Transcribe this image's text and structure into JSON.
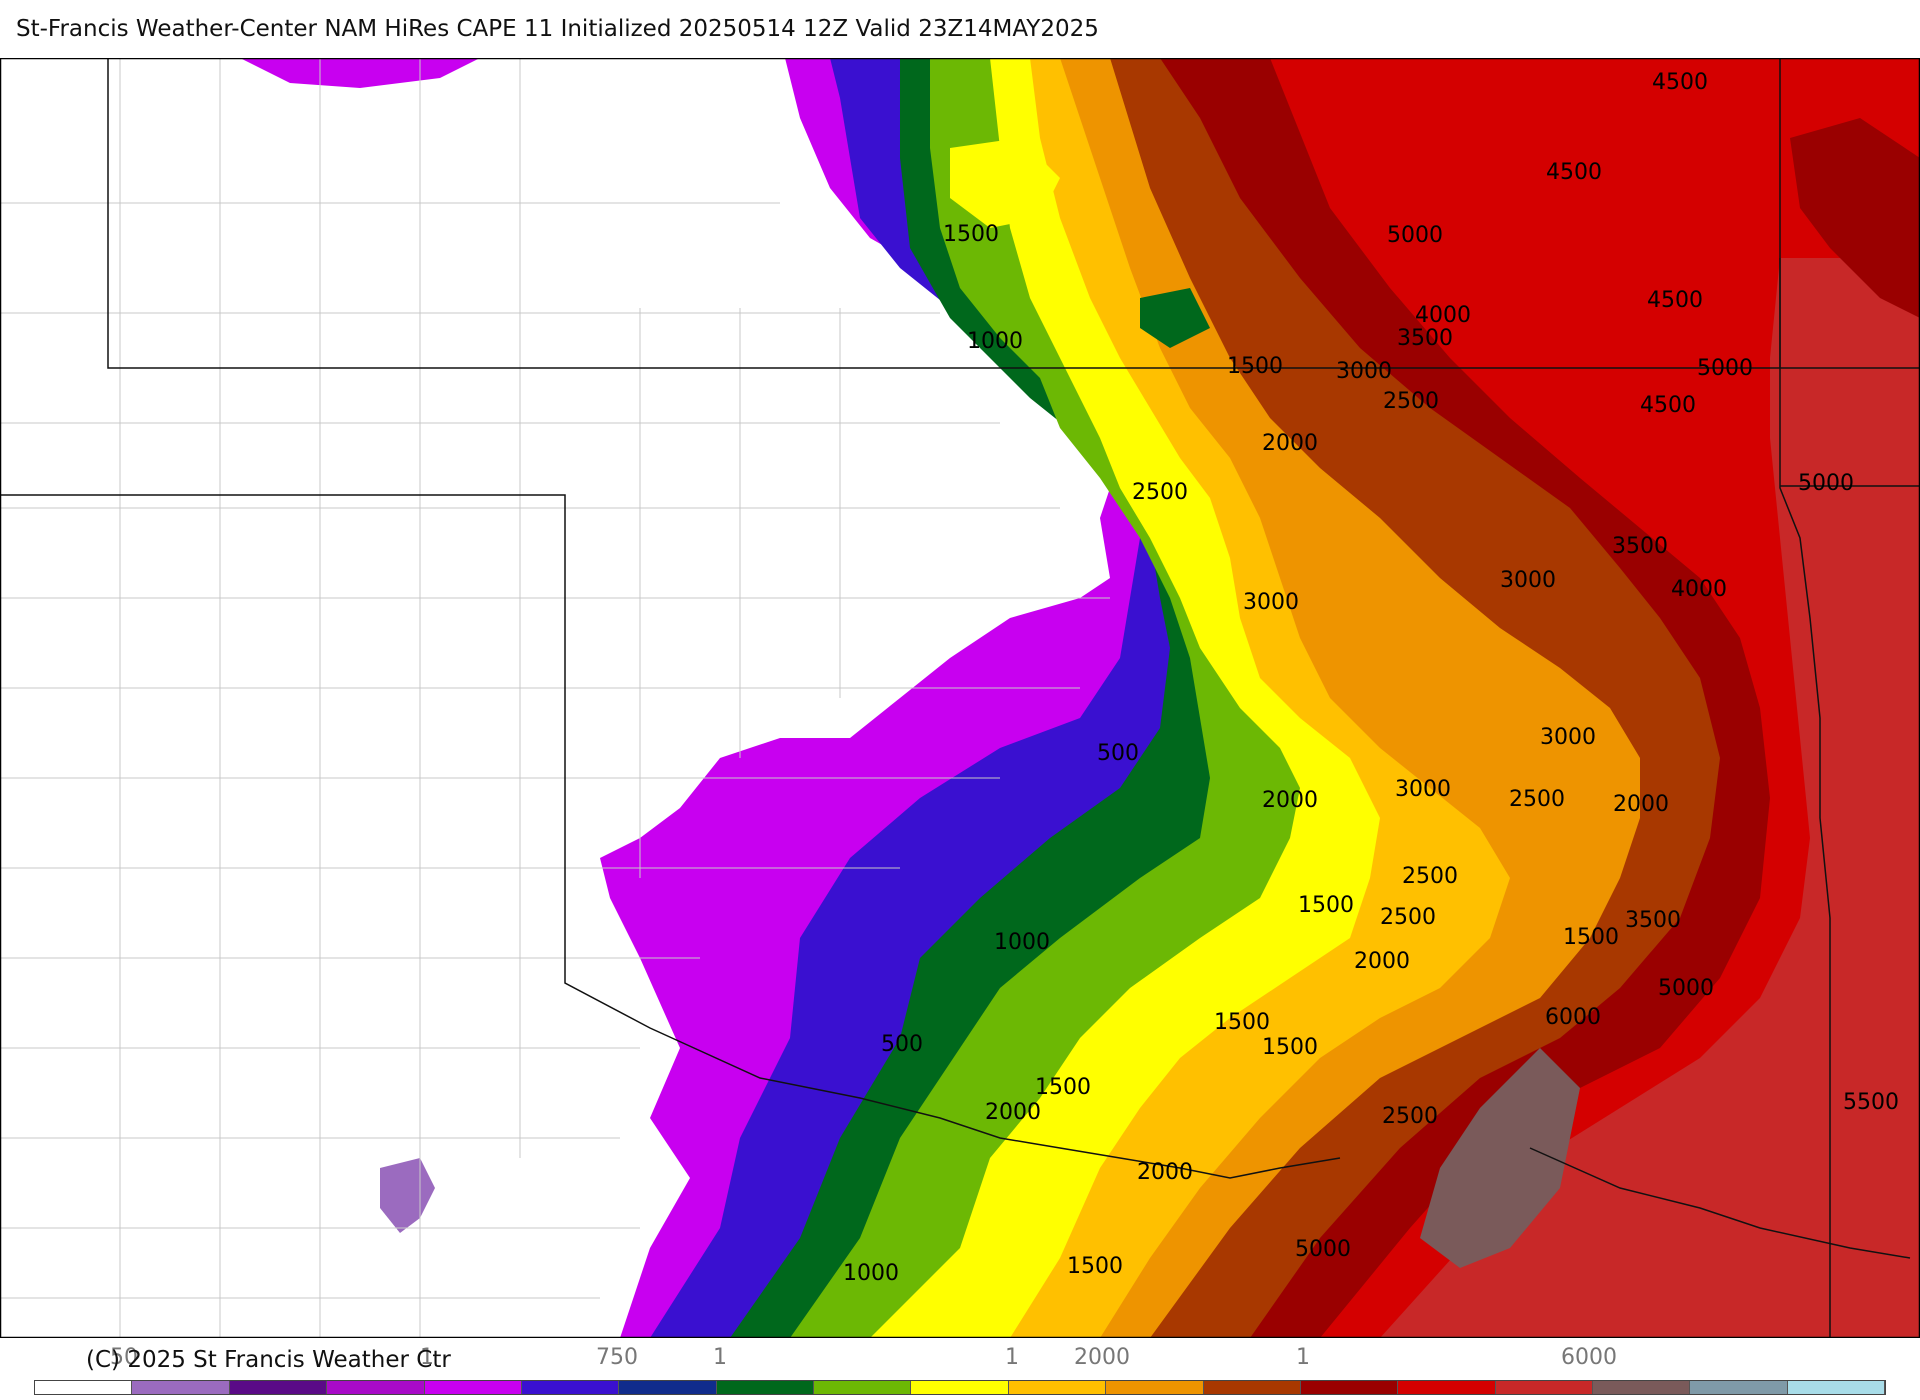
{
  "title": "St-Francis Weather-Center NAM HiRes CAPE  11 Initialized 20250514 12Z Valid 23Z14MAY2025",
  "copyright": "(C) 2025 St Francis Weather Ctr",
  "contour_labels": {
    "l1": "4500",
    "l2": "4500",
    "l3": "5000",
    "l4": "4500",
    "l5": "4000",
    "l6": "3500",
    "l7": "3000",
    "l8": "1500",
    "l9": "1000",
    "l10": "1500",
    "l11": "2500",
    "l12": "5000",
    "l13": "4500",
    "l14": "2000",
    "l15": "2500",
    "l16": "5000",
    "l17": "3500",
    "l18": "3000",
    "l19": "4000",
    "l20": "3000",
    "l21": "3000",
    "l22": "500",
    "l23": "2000",
    "l24": "3000",
    "l25": "2500",
    "l26": "2000",
    "l27": "2500",
    "l28": "1500",
    "l29": "2500",
    "l30": "1000",
    "l31": "3500",
    "l32": "1500",
    "l33": "2000",
    "l34": "5000",
    "l35": "6000",
    "l36": "1500",
    "l37": "1500",
    "l38": "500",
    "l39": "1500",
    "l40": "2000",
    "l41": "5500",
    "l42": "2500",
    "l43": "2000",
    "l44": "5000",
    "l45": "1000",
    "l46": "1500"
  },
  "colorbar": {
    "colors": [
      "#ffffff",
      "#9b6bbf",
      "#5a0a87",
      "#a80ac8",
      "#c800f0",
      "#3a10d0",
      "#102c8c",
      "#00681c",
      "#6cb804",
      "#ffff00",
      "#ffc000",
      "#ee9400",
      "#a83800",
      "#9a0000",
      "#d40000",
      "#c82828",
      "#7a5a5a",
      "#7f9aa8",
      "#a8dce8"
    ],
    "tick_labels": {
      "t1": "50",
      "t2": "1",
      "t3": "750",
      "t4": "1",
      "t5": "1",
      "t6": "2000",
      "t7": "1",
      "t8": "6000"
    }
  }
}
